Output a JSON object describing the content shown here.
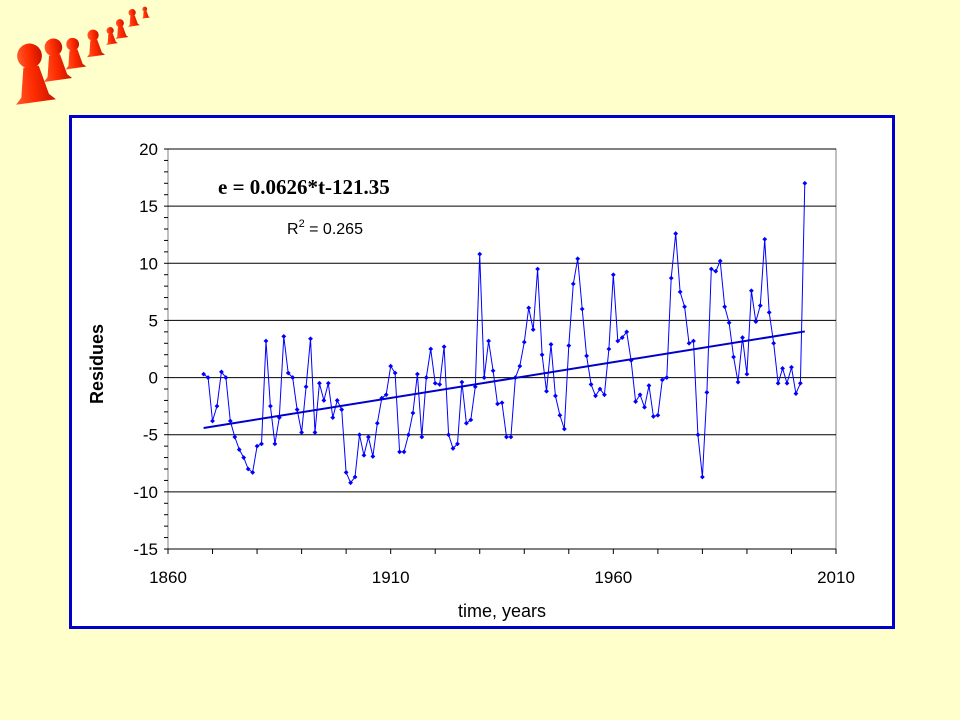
{
  "chart_data": {
    "type": "line",
    "xlabel": "time, years",
    "ylabel": "Residues",
    "xlim": [
      1860,
      2010
    ],
    "ylim": [
      -15,
      20
    ],
    "x_ticks": [
      1860,
      1910,
      1960,
      2010
    ],
    "y_ticks": [
      20,
      15,
      10,
      5,
      0,
      -5,
      -10,
      -15
    ],
    "grid": "horizontal",
    "line_color": "#0000ff",
    "trend_color": "#0000cc",
    "annotations": {
      "equation": "e = 0.0626*t-121.35",
      "r2_prefix": "R",
      "r2_sup": "2",
      "r2_value": " = 0.265"
    },
    "trend": {
      "slope": 0.0626,
      "intercept": -121.35,
      "x_start": 1868,
      "x_end": 2003
    },
    "series": [
      {
        "x": [
          1868,
          1869,
          1870,
          1871,
          1872,
          1873,
          1874,
          1875,
          1876,
          1877,
          1878,
          1879,
          1880,
          1881,
          1882,
          1883,
          1884,
          1885,
          1886,
          1887,
          1888,
          1889,
          1890,
          1891,
          1892,
          1893,
          1894,
          1895,
          1896,
          1897,
          1898,
          1899,
          1900,
          1901,
          1902,
          1903,
          1904,
          1905,
          1906,
          1907,
          1908,
          1909,
          1910,
          1911,
          1912,
          1913,
          1914,
          1915,
          1916,
          1917,
          1918,
          1919,
          1920,
          1921,
          1922,
          1923,
          1924,
          1925,
          1926,
          1927,
          1928,
          1929,
          1930,
          1931,
          1932,
          1933,
          1934,
          1935,
          1936,
          1937,
          1938,
          1939,
          1940,
          1941,
          1942,
          1943,
          1944,
          1945,
          1946,
          1947,
          1948,
          1949,
          1950,
          1951,
          1952,
          1953,
          1954,
          1955,
          1956,
          1957,
          1958,
          1959,
          1960,
          1961,
          1962,
          1963,
          1964,
          1965,
          1966,
          1967,
          1968,
          1969,
          1970,
          1971,
          1972,
          1973,
          1974,
          1975,
          1976,
          1977,
          1978,
          1979,
          1980,
          1981,
          1982,
          1983,
          1984,
          1985,
          1986,
          1987,
          1988,
          1989,
          1990,
          1991,
          1992,
          1993,
          1994,
          1995,
          1996,
          1997,
          1998,
          1999,
          2000,
          2001,
          2002,
          2003
        ],
        "values": [
          0.3,
          0.0,
          -3.8,
          -2.5,
          0.5,
          0.0,
          -3.8,
          -5.2,
          -6.3,
          -7.0,
          -8.0,
          -8.3,
          -6.0,
          -5.8,
          3.2,
          -2.5,
          -5.8,
          -3.5,
          3.6,
          0.4,
          0.0,
          -2.8,
          -4.8,
          -0.8,
          3.4,
          -4.8,
          -0.5,
          -2.0,
          -0.5,
          -3.5,
          -2.0,
          -2.8,
          -8.3,
          -9.2,
          -8.7,
          -5.0,
          -6.8,
          -5.2,
          -6.9,
          -4.0,
          -1.8,
          -1.5,
          1.0,
          0.4,
          -6.5,
          -6.5,
          -5.0,
          -3.1,
          0.3,
          -5.2,
          0.0,
          2.5,
          -0.5,
          -0.6,
          2.7,
          -5.0,
          -6.2,
          -5.8,
          -0.4,
          -4.0,
          -3.7,
          -0.8,
          10.8,
          0.0,
          3.2,
          0.6,
          -2.3,
          -2.2,
          -5.2,
          -5.2,
          0.0,
          1.0,
          3.1,
          6.1,
          4.2,
          9.5,
          2.0,
          -1.2,
          2.9,
          -1.6,
          -3.3,
          -4.5,
          2.8,
          8.2,
          10.4,
          6.0,
          1.9,
          -0.6,
          -1.6,
          -1.0,
          -1.5,
          2.5,
          9.0,
          3.2,
          3.5,
          4.0,
          1.5,
          -2.1,
          -1.5,
          -2.6,
          -0.7,
          -3.4,
          -3.3,
          -0.2,
          0.0,
          8.7,
          12.6,
          7.5,
          6.2,
          3.0,
          3.2,
          -5.0,
          -8.7,
          -1.3,
          9.5,
          9.3,
          10.2,
          6.2,
          4.8,
          1.8,
          -0.4,
          3.5,
          0.3,
          7.6,
          4.9,
          6.3,
          12.1,
          5.7,
          3.0,
          -0.5,
          0.8,
          -0.5,
          0.9,
          -1.4,
          -0.5,
          17.0
        ]
      }
    ]
  }
}
